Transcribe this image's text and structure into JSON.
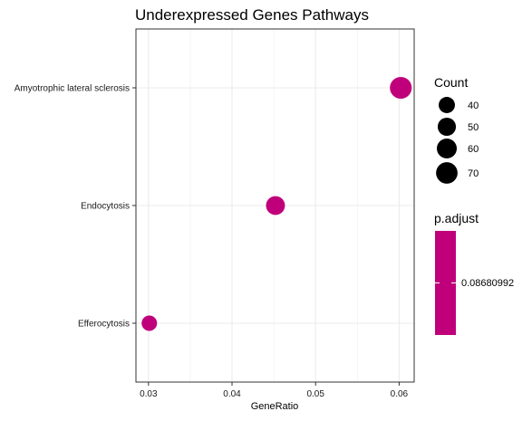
{
  "chart_data": {
    "type": "scatter",
    "title": "Underexpressed Genes Pathways",
    "xlabel": "GeneRatio",
    "ylabel": "",
    "xlim": [
      0.0285,
      0.0618
    ],
    "x_ticks": [
      0.03,
      0.04,
      0.05,
      0.06
    ],
    "x_tick_labels": [
      "0.03",
      "0.04",
      "0.05",
      "0.06"
    ],
    "categories": [
      "Amyotrophic lateral sclerosis",
      "Endocytosis",
      "Efferocytosis"
    ],
    "points": [
      {
        "category": "Amyotrophic lateral sclerosis",
        "x": 0.0602,
        "count": 72,
        "p_adjust": 0.08680992
      },
      {
        "category": "Endocytosis",
        "x": 0.0452,
        "count": 54,
        "p_adjust": 0.08680992
      },
      {
        "category": "Efferocytosis",
        "x": 0.0301,
        "count": 36,
        "p_adjust": 0.08680992
      }
    ],
    "point_color": "#c0007a",
    "grid": true,
    "size_legend": {
      "title": "Count",
      "entries": [
        40,
        50,
        60,
        70
      ],
      "labels": [
        "40",
        "50",
        "60",
        "70"
      ]
    },
    "color_legend": {
      "title": "p.adjust",
      "label": "0.08680992",
      "color": "#c0007a"
    },
    "legend_position": "right"
  }
}
